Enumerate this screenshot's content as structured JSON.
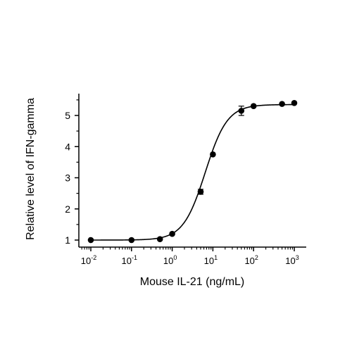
{
  "chart_data": {
    "type": "scatter",
    "title": "",
    "xlabel": "Mouse IL-21 (ng/mL)",
    "ylabel": "Relative level of IFN-gamma",
    "x_scale": "log",
    "xlim": [
      0.005,
      1500
    ],
    "ylim": [
      0.8,
      5.6
    ],
    "x_ticks": [
      {
        "base": "10",
        "exp": "-2",
        "value": 0.01
      },
      {
        "base": "10",
        "exp": "-1",
        "value": 0.1
      },
      {
        "base": "10",
        "exp": "0",
        "value": 1
      },
      {
        "base": "10",
        "exp": "1",
        "value": 10
      },
      {
        "base": "10",
        "exp": "2",
        "value": 100
      },
      {
        "base": "10",
        "exp": "3",
        "value": 1000
      }
    ],
    "y_ticks": [
      "1",
      "2",
      "3",
      "4",
      "5"
    ],
    "grid": false,
    "legend": "none",
    "points": [
      {
        "x": 0.01,
        "y": 1.0,
        "err": 0
      },
      {
        "x": 0.1,
        "y": 1.0,
        "err": 0
      },
      {
        "x": 0.5,
        "y": 1.03,
        "err": 0
      },
      {
        "x": 1,
        "y": 1.2,
        "err": 0
      },
      {
        "x": 5,
        "y": 2.55,
        "err": 0.08
      },
      {
        "x": 10,
        "y": 3.75,
        "err": 0
      },
      {
        "x": 50,
        "y": 5.15,
        "err": 0.15
      },
      {
        "x": 100,
        "y": 5.3,
        "err": 0
      },
      {
        "x": 500,
        "y": 5.37,
        "err": 0
      },
      {
        "x": 1000,
        "y": 5.4,
        "err": 0
      }
    ],
    "fit": {
      "model": "4PL",
      "bottom": 1.0,
      "top": 5.35,
      "ec50": 6.5,
      "hill": 1.6
    },
    "colors": {
      "marker": "#000000",
      "line": "#000000",
      "axis": "#000000"
    }
  }
}
